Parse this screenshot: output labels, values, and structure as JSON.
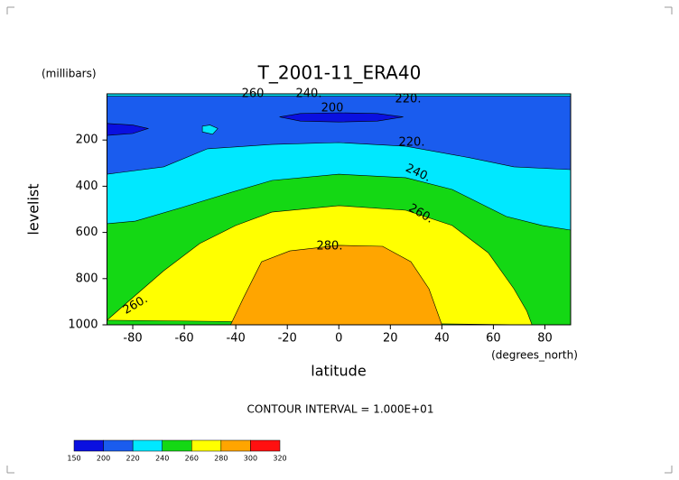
{
  "chart_data": {
    "type": "contour",
    "title": "T_2001-11_ERA40",
    "x_label": "latitude",
    "x_units": "(degrees_north)",
    "y_label": "levelist",
    "y_units": "(millibars)",
    "footnote": "CONTOUR INTERVAL = 1.000E+01",
    "xlim": [
      -90,
      90
    ],
    "xticks": [
      -80,
      -60,
      -40,
      -20,
      0,
      20,
      40,
      60,
      80
    ],
    "ylim": [
      1000,
      0
    ],
    "yticks": [
      200,
      400,
      600,
      800,
      1000
    ],
    "grid": false,
    "colorbar": {
      "levels": [
        150,
        200,
        220,
        240,
        260,
        280,
        300,
        320
      ],
      "colors": [
        "#0a10e0",
        "#1a5cee",
        "#00e8ff",
        "#14d814",
        "#ffff00",
        "#ffa500",
        "#ff1010"
      ]
    },
    "regions": [
      {
        "min": 200,
        "lat": [
          -90,
          90,
          90,
          -90
        ],
        "pressure": [
          0,
          0,
          1000,
          1000
        ]
      },
      {
        "min": 220,
        "lat": [
          -90,
          -68,
          -51,
          -26,
          0,
          26,
          51,
          68,
          90,
          90,
          -90
        ],
        "pressure": [
          348,
          316,
          238,
          219,
          211,
          227,
          277,
          316,
          328,
          1000,
          1000
        ]
      },
      {
        "min": 220,
        "lat": [
          -53,
          -50,
          -47,
          -49,
          -53
        ],
        "pressure": [
          140,
          135,
          150,
          175,
          165
        ]
      },
      {
        "min": 220,
        "lat": [
          -90,
          90,
          90,
          -90
        ],
        "pressure": [
          0,
          0,
          10,
          10
        ]
      },
      {
        "min": 240,
        "lat": [
          -90,
          -79,
          -61,
          -44,
          -26,
          0,
          26,
          44,
          65,
          79,
          90,
          90,
          -90
        ],
        "pressure": [
          562,
          551,
          492,
          434,
          375,
          348,
          363,
          414,
          531,
          570,
          590,
          1000,
          1000
        ]
      },
      {
        "min": 260,
        "lat": [
          -90,
          -82,
          -68,
          -54,
          -40,
          -26,
          0,
          26,
          44,
          58,
          68,
          73,
          75
        ],
        "pressure": [
          980,
          902,
          766,
          648,
          570,
          512,
          484,
          504,
          570,
          688,
          844,
          941,
          1000
        ]
      },
      {
        "min": 280,
        "lat": [
          -42,
          -37,
          -30,
          -19,
          0,
          17,
          28,
          35,
          40
        ],
        "pressure": [
          1000,
          883,
          727,
          680,
          656,
          660,
          727,
          844,
          1000
        ]
      },
      {
        "min": 150,
        "lat": [
          -23,
          -15,
          0,
          15,
          25,
          15,
          0,
          -15
        ],
        "pressure": [
          100,
          85,
          82,
          85,
          100,
          118,
          122,
          118
        ]
      },
      {
        "min": 150,
        "lat": [
          -90,
          -80,
          -74,
          -80,
          -90
        ],
        "pressure": [
          128,
          135,
          150,
          172,
          180
        ]
      }
    ],
    "contour_labels": [
      260,
      {
        "value": 240,
        "label": "240."
      },
      200,
      {
        "value": 220,
        "label": "220."
      },
      {
        "value": 220,
        "label": "220."
      },
      {
        "value": 240,
        "label": "240."
      },
      {
        "value": 260,
        "label": "260."
      },
      {
        "value": 280,
        "label": "280."
      },
      {
        "value": 260,
        "label": "260."
      }
    ]
  }
}
